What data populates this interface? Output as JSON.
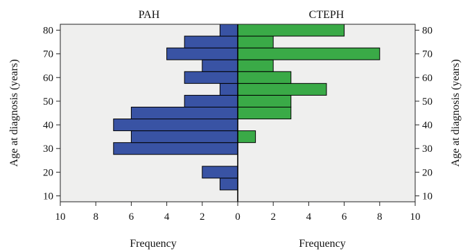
{
  "chart_data": {
    "type": "bar",
    "orientation": "horizontal-back-to-back",
    "ylabel_left": "Age at diagnosis (years)",
    "ylabel_right": "Age at diagnosis (years)",
    "xlabel_left": "Frequency",
    "xlabel_right": "Frequency",
    "xlim": [
      0,
      10
    ],
    "x_ticks_left": [
      "10",
      "8",
      "6",
      "4",
      "2",
      "0"
    ],
    "x_ticks_right": [
      "0",
      "2",
      "4",
      "6",
      "8",
      "10"
    ],
    "ylim": [
      7.5,
      82.5
    ],
    "y_ticks": [
      10,
      20,
      30,
      40,
      50,
      60,
      70,
      80
    ],
    "y_tick_labels": [
      "10",
      "20",
      "30",
      "40",
      "50",
      "60",
      "70",
      "80"
    ],
    "bin_width": 5,
    "bin_centers": [
      15,
      20,
      25,
      30,
      35,
      40,
      45,
      50,
      55,
      60,
      65,
      70,
      75,
      80
    ],
    "series": [
      {
        "name": "PAH",
        "side": "left",
        "color": "#3953a4",
        "values": [
          1,
          2,
          0,
          7,
          6,
          7,
          6,
          3,
          1,
          3,
          2,
          4,
          3,
          1
        ]
      },
      {
        "name": "CTEPH",
        "side": "right",
        "color": "#3aaa47",
        "values": [
          0,
          0,
          0,
          0,
          1,
          0,
          3,
          3,
          5,
          3,
          2,
          8,
          2,
          6
        ]
      }
    ],
    "background_color": "#efefee",
    "grid": false,
    "legend": "none"
  }
}
